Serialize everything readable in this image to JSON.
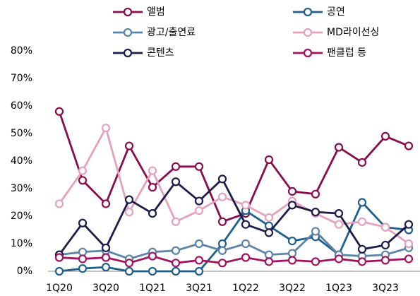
{
  "chart_data": {
    "type": "line",
    "categories": [
      "1Q20",
      null,
      "3Q20",
      null,
      "1Q21",
      null,
      "3Q21",
      null,
      "1Q22",
      null,
      "3Q22",
      null,
      "1Q23",
      null,
      "3Q23",
      null
    ],
    "series": [
      {
        "name": "앨범",
        "color": "#8a0b4e",
        "values": [
          58,
          33,
          24.5,
          45.5,
          30.5,
          38,
          38,
          18,
          21,
          40.5,
          29,
          28,
          45,
          39.5,
          49,
          45.5
        ]
      },
      {
        "name": "공연",
        "color": "#1f5f8b",
        "values": [
          0,
          1,
          1.5,
          0,
          0,
          0,
          0,
          10,
          22,
          16.5,
          11,
          12.5,
          6,
          25,
          16,
          15
        ]
      },
      {
        "name": "광고/출연료",
        "color": "#5b84a8",
        "values": [
          6,
          7,
          7.5,
          4.5,
          7,
          7.5,
          10,
          7.5,
          10,
          6,
          6.5,
          14.5,
          6,
          5.5,
          6,
          8.5
        ]
      },
      {
        "name": "MD라이선싱",
        "color": "#e6a1bb",
        "values": [
          24.5,
          36.5,
          52,
          21.5,
          36.5,
          18,
          22,
          27,
          24,
          19.5,
          25.5,
          21,
          17,
          18,
          16,
          10
        ]
      },
      {
        "name": "콘텐츠",
        "color": "#1c1c4c",
        "values": [
          6,
          17.5,
          8.5,
          26,
          21,
          32.5,
          25.5,
          33.5,
          17,
          14,
          24,
          21.5,
          21,
          8,
          9.5,
          17
        ]
      },
      {
        "name": "팬클럽 등",
        "color": "#a3115d",
        "values": [
          5,
          4.5,
          5,
          3,
          5.5,
          3,
          4,
          3,
          5,
          3.5,
          4,
          3.5,
          4.5,
          3.5,
          4,
          4.5
        ]
      }
    ],
    "ylim": [
      0,
      80
    ],
    "yticks": [
      {
        "value": 0,
        "label": "0%"
      },
      {
        "value": 10,
        "label": "10%"
      },
      {
        "value": 20,
        "label": "20%"
      },
      {
        "value": 30,
        "label": "30%"
      },
      {
        "value": 40,
        "label": "40%"
      },
      {
        "value": 50,
        "label": "50%"
      },
      {
        "value": 60,
        "label": "60%"
      },
      {
        "value": 70,
        "label": "70%"
      },
      {
        "value": 80,
        "label": "80%"
      }
    ]
  }
}
